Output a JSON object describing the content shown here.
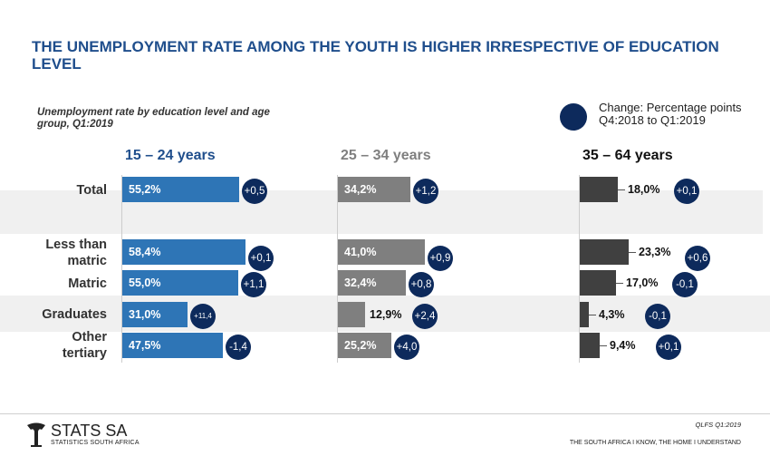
{
  "title": "THE UNEMPLOYMENT RATE AMONG THE YOUTH IS HIGHER IRRESPECTIVE OF EDUCATION LEVEL",
  "subtitle": "Unemployment rate by education level and age group, Q1:2019",
  "legend": {
    "line1": "Change: Percentage points",
    "line2": "Q4:2018 to Q1:2019",
    "color": "#0d2a5c"
  },
  "chart_data": {
    "type": "bar",
    "orientation": "horizontal",
    "categories": [
      "Total",
      "Less than matric",
      "Matric",
      "Graduates",
      "Other tertiary"
    ],
    "category_lines": [
      [
        "Total"
      ],
      [
        "Less than",
        "matric"
      ],
      [
        "Matric"
      ],
      [
        "Graduates"
      ],
      [
        "Other",
        "tertiary"
      ]
    ],
    "unit": "%",
    "series": [
      {
        "name": "15 – 24 years",
        "color": "#2e75b6",
        "header_color": "#1f4e8c",
        "values": [
          55.2,
          58.4,
          55.0,
          31.0,
          47.5
        ],
        "labels": [
          "55,2%",
          "58,4%",
          "55,0%",
          "31,0%",
          "47,5%"
        ],
        "changes": [
          "+0,5",
          "+0,1",
          "+1,1",
          "+11,4",
          "-1,4"
        ]
      },
      {
        "name": "25 – 34 years",
        "color": "#7f7f7f",
        "header_color": "#7f7f7f",
        "values": [
          34.2,
          41.0,
          32.4,
          12.9,
          25.2
        ],
        "labels": [
          "34,2%",
          "41,0%",
          "32,4%",
          "12,9%",
          "25,2%"
        ],
        "changes": [
          "+1,2",
          "+0,9",
          "+0,8",
          "+2,4",
          "+4,0"
        ]
      },
      {
        "name": "35 – 64 years",
        "color": "#404040",
        "header_color": "#111111",
        "values": [
          18.0,
          23.3,
          17.0,
          4.3,
          9.4
        ],
        "labels": [
          "18,0%",
          "23,3%",
          "17,0%",
          "4,3%",
          "9,4%"
        ],
        "changes": [
          "+0,1",
          "+0,6",
          "-0,1",
          "-0,1",
          "+0,1"
        ]
      }
    ]
  },
  "footer": {
    "logo_name": "STATS SA",
    "logo_sub": "STATISTICS SOUTH AFRICA",
    "source": "QLFS Q1:2019",
    "tagline": "THE SOUTH AFRICA I KNOW, THE HOME I UNDERSTAND"
  }
}
